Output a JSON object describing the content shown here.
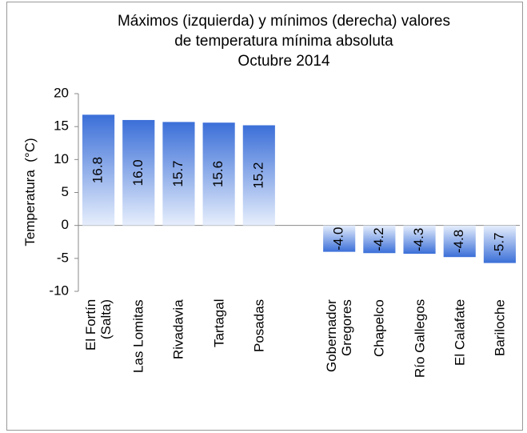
{
  "chart_data": {
    "type": "bar",
    "title": "Máximos  (izquierda) y mínimos (derecha) valores\nde temperatura mínima absoluta\nOctubre 2014",
    "y_label": "Temperatura  (°C)",
    "categories": [
      "El Fortín\n(Salta)",
      "Las Lomitas",
      "Rivadavia",
      "Tartagal",
      "Posadas",
      null,
      "Gobernador\nGregores",
      "Chapelco",
      "Río Gallegos",
      "El Calafate",
      "Bariloche"
    ],
    "values": [
      16.8,
      16.0,
      15.7,
      15.6,
      15.2,
      null,
      -4.0,
      -4.2,
      -4.3,
      -4.8,
      -5.7
    ],
    "value_labels": [
      "16.8",
      "16.0",
      "15.7",
      "15.6",
      "15.2",
      null,
      "-4.0",
      "-4.2",
      "-4.3",
      "-4.8",
      "-5.7"
    ],
    "color": "#3b6fd8",
    "ylim": [
      -10,
      20
    ],
    "yticks": [
      -10,
      -5,
      0,
      5,
      10,
      15,
      20
    ]
  }
}
